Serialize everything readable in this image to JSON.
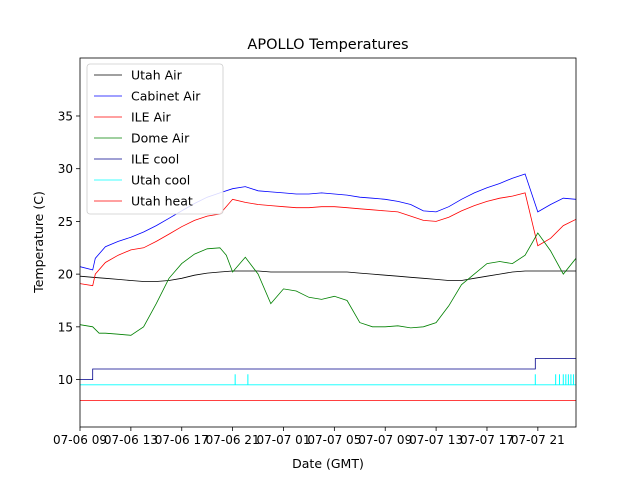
{
  "chart_data": {
    "type": "line",
    "title": "APOLLO Temperatures",
    "xlabel": "Date (GMT)",
    "ylabel": "Temperature (C)",
    "xlim": [
      0,
      39
    ],
    "ylim": [
      5.5,
      40.5
    ],
    "grid": false,
    "legend_position": "top-left",
    "x_unit": "hours since 07-06 09:00",
    "x_ticks": [
      {
        "x": 0,
        "label": "07-06 09"
      },
      {
        "x": 4,
        "label": "07-06 13"
      },
      {
        "x": 8,
        "label": "07-06 17"
      },
      {
        "x": 12,
        "label": "07-06 21"
      },
      {
        "x": 16,
        "label": "07-07 01"
      },
      {
        "x": 20,
        "label": "07-07 05"
      },
      {
        "x": 24,
        "label": "07-07 09"
      },
      {
        "x": 28,
        "label": "07-07 13"
      },
      {
        "x": 32,
        "label": "07-07 17"
      },
      {
        "x": 36,
        "label": "07-07 21"
      }
    ],
    "y_ticks": [
      10,
      15,
      20,
      25,
      30,
      35
    ],
    "series": [
      {
        "name": "Utah Air",
        "color": "#000000",
        "x": [
          0,
          1,
          2,
          3,
          4,
          5,
          6,
          7,
          8,
          9,
          10,
          11,
          12,
          13,
          14,
          15,
          16,
          17,
          18,
          19,
          20,
          21,
          22,
          23,
          24,
          25,
          26,
          27,
          28,
          29,
          30,
          31,
          32,
          33,
          34,
          35,
          36,
          37,
          38,
          39
        ],
        "y": [
          19.8,
          19.7,
          19.6,
          19.5,
          19.4,
          19.3,
          19.3,
          19.4,
          19.6,
          19.9,
          20.1,
          20.2,
          20.3,
          20.3,
          20.3,
          20.2,
          20.2,
          20.2,
          20.2,
          20.2,
          20.2,
          20.2,
          20.1,
          20.0,
          19.9,
          19.8,
          19.7,
          19.6,
          19.5,
          19.4,
          19.4,
          19.6,
          19.8,
          20.0,
          20.2,
          20.3,
          20.3,
          20.3,
          20.3,
          20.3
        ]
      },
      {
        "name": "Cabinet Air",
        "color": "#0000ff",
        "x": [
          0,
          1,
          1.2,
          2,
          3,
          4,
          5,
          6,
          7,
          8,
          9,
          10,
          11,
          12,
          13,
          14,
          15,
          16,
          17,
          18,
          19,
          20,
          21,
          22,
          23,
          24,
          25,
          26,
          27,
          28,
          29,
          30,
          31,
          32,
          33,
          34,
          35,
          36,
          37,
          38,
          39
        ],
        "y": [
          20.7,
          20.4,
          21.5,
          22.6,
          23.1,
          23.5,
          24.0,
          24.6,
          25.3,
          26.0,
          26.7,
          27.3,
          27.7,
          28.1,
          28.3,
          27.9,
          27.8,
          27.7,
          27.6,
          27.6,
          27.7,
          27.6,
          27.5,
          27.3,
          27.2,
          27.1,
          26.9,
          26.6,
          26.0,
          25.9,
          26.4,
          27.1,
          27.7,
          28.2,
          28.6,
          29.1,
          29.5,
          25.9,
          26.6,
          27.2,
          27.1
        ]
      },
      {
        "name": "ILE Air",
        "color": "#ff0000",
        "x": [
          0,
          1,
          1.2,
          2,
          3,
          4,
          5,
          6,
          7,
          8,
          9,
          10,
          11,
          12,
          13,
          14,
          15,
          16,
          17,
          18,
          19,
          20,
          21,
          22,
          23,
          24,
          25,
          26,
          27,
          28,
          29,
          30,
          31,
          32,
          33,
          34,
          35,
          36,
          37,
          38,
          39
        ],
        "y": [
          19.1,
          18.9,
          20.0,
          21.1,
          21.8,
          22.3,
          22.5,
          23.1,
          23.8,
          24.5,
          25.1,
          25.5,
          25.7,
          27.1,
          26.8,
          26.6,
          26.5,
          26.4,
          26.3,
          26.3,
          26.4,
          26.4,
          26.3,
          26.2,
          26.1,
          26.0,
          25.9,
          25.5,
          25.1,
          25.0,
          25.4,
          26.0,
          26.5,
          26.9,
          27.2,
          27.4,
          27.7,
          22.7,
          23.4,
          24.6,
          25.2
        ]
      },
      {
        "name": "Dome Air",
        "color": "#008000",
        "x": [
          0,
          1,
          1.5,
          2,
          3,
          4,
          5,
          6,
          7,
          8,
          9,
          10,
          11,
          11.5,
          12,
          13,
          14,
          15,
          16,
          17,
          18,
          19,
          20,
          21,
          22,
          23,
          24,
          25,
          26,
          27,
          28,
          29,
          30,
          31,
          32,
          33,
          34,
          35,
          36,
          37,
          38,
          39
        ],
        "y": [
          15.2,
          15.0,
          14.4,
          14.4,
          14.3,
          14.2,
          15.0,
          17.2,
          19.6,
          21.0,
          21.9,
          22.4,
          22.5,
          21.8,
          20.2,
          21.6,
          20.0,
          17.2,
          18.6,
          18.4,
          17.8,
          17.6,
          17.9,
          17.5,
          15.4,
          15.0,
          15.0,
          15.1,
          14.9,
          15.0,
          15.4,
          17.0,
          19.0,
          20.0,
          21.0,
          21.2,
          21.0,
          21.8,
          23.9,
          22.2,
          20.0,
          21.5
        ]
      },
      {
        "name": "ILE cool",
        "color": "#00008b",
        "x": [
          0,
          1,
          1,
          35.8,
          35.8,
          39
        ],
        "y": [
          10.0,
          10.0,
          11.0,
          11.0,
          12.0,
          12.0
        ]
      },
      {
        "name": "Utah cool",
        "color": "#00ffff",
        "x": [
          0,
          39
        ],
        "y": [
          9.5,
          9.5
        ],
        "spikes_x": [
          12.2,
          13.2,
          35.8,
          37.4,
          37.7,
          38.0,
          38.2,
          38.4,
          38.6,
          38.8,
          39.0
        ],
        "spike_top": 10.5
      },
      {
        "name": "Utah heat",
        "color": "#ff0000",
        "x": [
          0,
          39
        ],
        "y": [
          8.0,
          8.0
        ]
      }
    ]
  }
}
